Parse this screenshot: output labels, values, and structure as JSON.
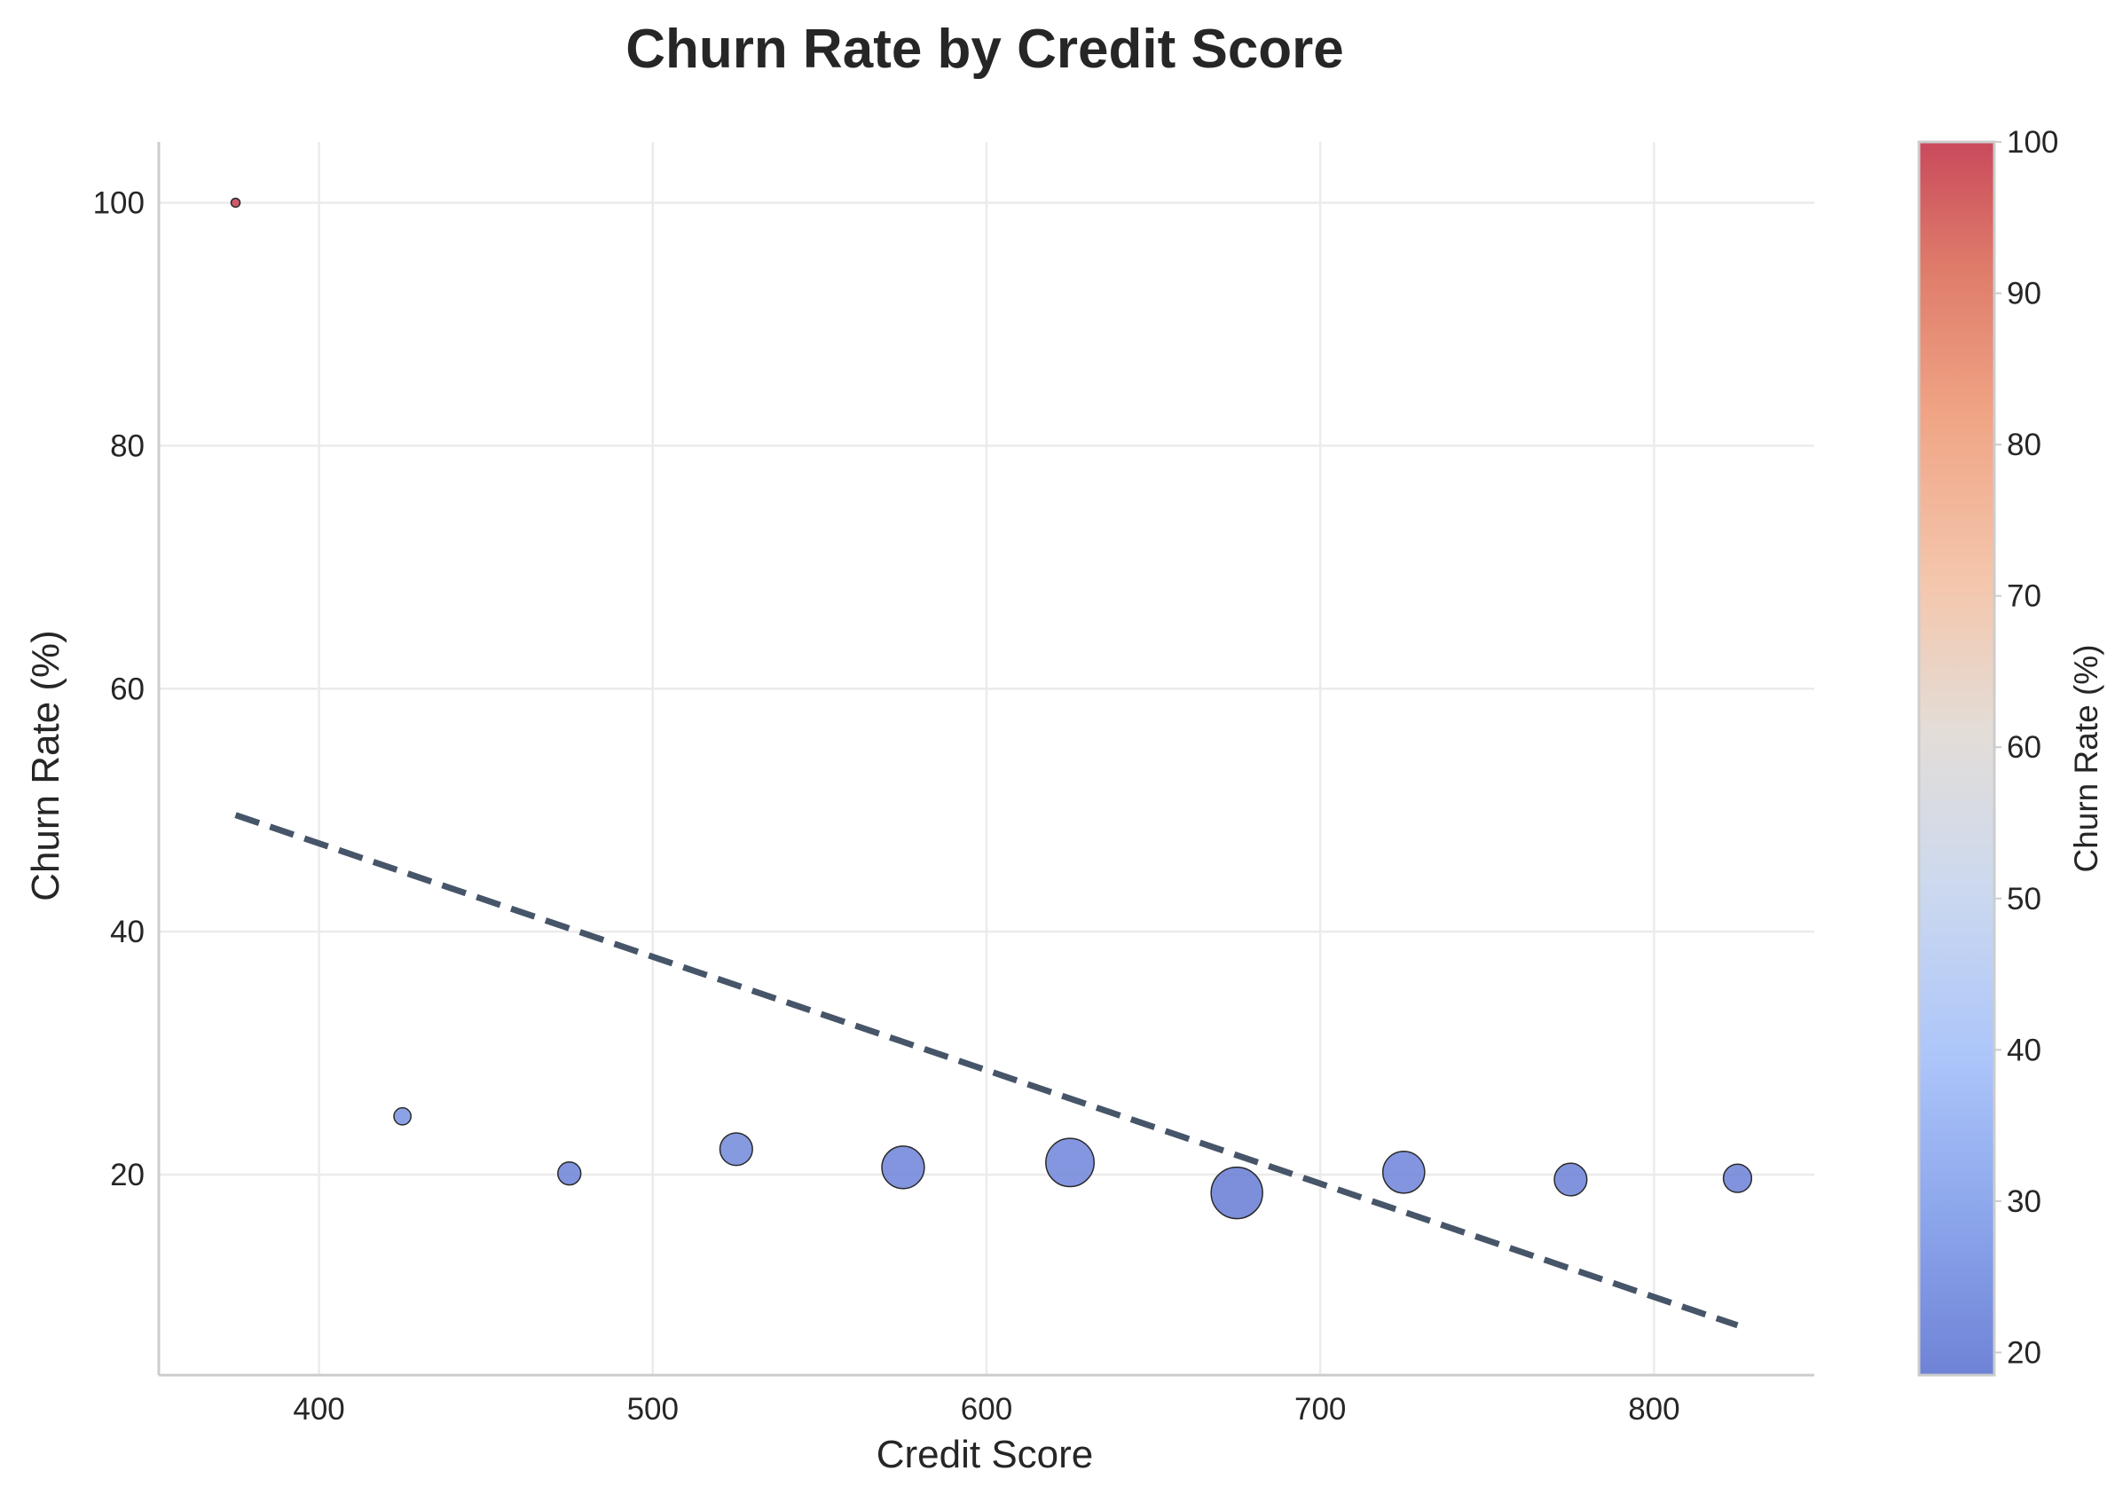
{
  "chart_data": {
    "type": "scatter",
    "title": "Churn Rate by Credit Score",
    "xlabel": "Credit Score",
    "ylabel": "Churn Rate (%)",
    "xlim": [
      352,
      848
    ],
    "ylim": [
      3.5,
      105
    ],
    "xticks": [
      "400",
      "500",
      "600",
      "700",
      "800"
    ],
    "yticks": [
      "20",
      "40",
      "60",
      "80",
      "100"
    ],
    "grid": true,
    "points": [
      {
        "x": 375,
        "y": 100.0,
        "size": 0.03
      },
      {
        "x": 425,
        "y": 24.8,
        "size": 0.11
      },
      {
        "x": 475,
        "y": 20.1,
        "size": 0.2
      },
      {
        "x": 525,
        "y": 22.1,
        "size": 0.4
      },
      {
        "x": 575,
        "y": 20.6,
        "size": 0.68
      },
      {
        "x": 625,
        "y": 21.0,
        "size": 0.88
      },
      {
        "x": 675,
        "y": 18.5,
        "size": 1.0
      },
      {
        "x": 725,
        "y": 20.2,
        "size": 0.66
      },
      {
        "x": 775,
        "y": 19.6,
        "size": 0.4
      },
      {
        "x": 825,
        "y": 19.7,
        "size": 0.3
      }
    ],
    "trend_line": {
      "x": [
        375,
        825
      ],
      "y": [
        49.6,
        7.6
      ],
      "style": "dashed",
      "color": "#475569"
    },
    "colorbar": {
      "label": "Churn Rate (%)",
      "range": [
        18.5,
        100
      ],
      "ticks": [
        "20",
        "30",
        "40",
        "50",
        "60",
        "70",
        "80",
        "90",
        "100"
      ],
      "colormap": "coolwarm"
    }
  }
}
